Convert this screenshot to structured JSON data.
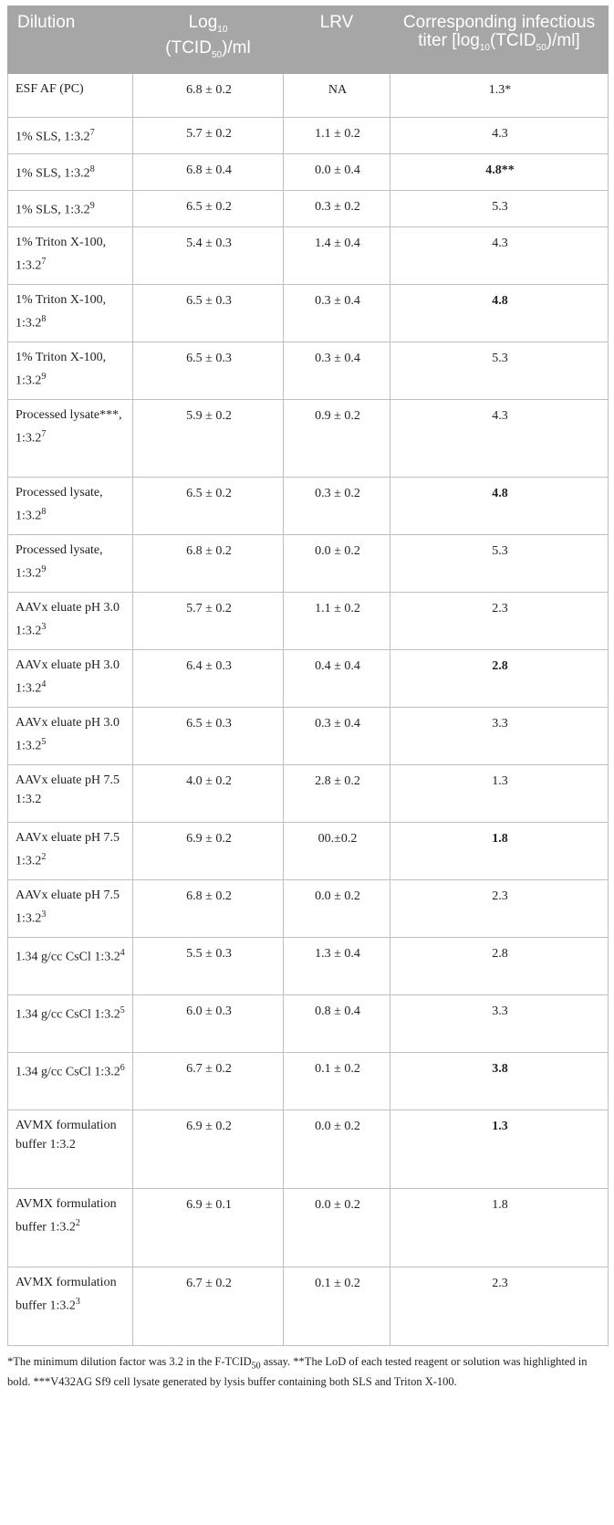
{
  "header": {
    "col1": "Dilution",
    "col2_a": "Log",
    "col2_sub": "10",
    "col2_b": "(TCID",
    "col2_sub2": "50",
    "col2_c": ")/ml",
    "col3": "LRV",
    "col4_a": "Corresponding infectious titer [log",
    "col4_sub": "10",
    "col4_b": "(TCID",
    "col4_sub2": "50",
    "col4_c": ")/ml]"
  },
  "rows": [
    {
      "name": "ESF AF (PC)",
      "sup": "",
      "log": "6.8 ± 0.2",
      "lrv": "NA",
      "titer": "1.3*",
      "bold": false,
      "h": 48
    },
    {
      "name": "1% SLS, 1:3.2",
      "sup": "7",
      "log": "5.7 ± 0.2",
      "lrv": "1.1 ± 0.2",
      "titer": "4.3",
      "bold": false,
      "h": 40
    },
    {
      "name": "1% SLS, 1:3.2",
      "sup": "8",
      "log": "6.8 ± 0.4",
      "lrv": "0.0 ± 0.4",
      "titer": "4.8**",
      "bold": true,
      "h": 40
    },
    {
      "name": "1% SLS, 1:3.2",
      "sup": "9",
      "log": "6.5 ± 0.2",
      "lrv": "0.3 ± 0.2",
      "titer": "5.3",
      "bold": false,
      "h": 40
    },
    {
      "name": "1% Triton X-100, 1:3.2",
      "sup": "7",
      "log": "5.4 ± 0.3",
      "lrv": "1.4 ± 0.4",
      "titer": "4.3",
      "bold": false,
      "h": 63
    },
    {
      "name": "1% Triton X-100, 1:3.2",
      "sup": "8",
      "log": "6.5 ± 0.3",
      "lrv": "0.3 ± 0.4",
      "titer": "4.8",
      "bold": true,
      "h": 63
    },
    {
      "name": "1% Triton X-100, 1:3.2",
      "sup": "9",
      "log": "6.5 ± 0.3",
      "lrv": "0.3 ± 0.4",
      "titer": "5.3",
      "bold": false,
      "h": 63
    },
    {
      "name": "Processed lysate***, 1:3.2",
      "sup": "7",
      "log": "5.9 ± 0.2",
      "lrv": "0.9 ± 0.2",
      "titer": "4.3",
      "bold": false,
      "h": 85
    },
    {
      "name": "Processed lysate, 1:3.2",
      "sup": "8",
      "log": "6.5 ± 0.2",
      "lrv": "0.3 ± 0.2",
      "titer": "4.8",
      "bold": true,
      "h": 63
    },
    {
      "name": "Processed lysate, 1:3.2",
      "sup": "9",
      "log": "6.8 ± 0.2",
      "lrv": "0.0 ± 0.2",
      "titer": "5.3",
      "bold": false,
      "h": 63
    },
    {
      "name": "AAVx eluate pH 3.0 1:3.2",
      "sup": "3",
      "log": "5.7 ± 0.2",
      "lrv": "1.1 ± 0.2",
      "titer": "2.3",
      "bold": false,
      "h": 63
    },
    {
      "name": "AAVx eluate pH 3.0 1:3.2",
      "sup": "4",
      "log": "6.4 ± 0.3",
      "lrv": "0.4 ± 0.4",
      "titer": "2.8",
      "bold": true,
      "h": 63
    },
    {
      "name": "AAVx eluate pH 3.0 1:3.2",
      "sup": "5",
      "log": "6.5 ± 0.3",
      "lrv": "0.3 ± 0.4",
      "titer": "3.3",
      "bold": false,
      "h": 63
    },
    {
      "name": "AAVx eluate pH 7.5 1:3.2",
      "sup": "",
      "log": "4.0 ± 0.2",
      "lrv": "2.8 ± 0.2",
      "titer": "1.3",
      "bold": false,
      "h": 63
    },
    {
      "name": "AAVx eluate pH 7.5 1:3.2",
      "sup": "2",
      "log": "6.9 ± 0.2",
      "lrv": "00.±0.2",
      "titer": "1.8",
      "bold": true,
      "h": 63
    },
    {
      "name": "AAVx eluate pH 7.5 1:3.2",
      "sup": "3",
      "log": "6.8 ± 0.2",
      "lrv": "0.0 ± 0.2",
      "titer": "2.3",
      "bold": false,
      "h": 63
    },
    {
      "name": "1.34 g/cc CsCl 1:3.2",
      "sup": "4",
      "log": "5.5 ± 0.3",
      "lrv": "1.3 ± 0.4",
      "titer": "2.8",
      "bold": false,
      "h": 63
    },
    {
      "name": "1.34 g/cc CsCl 1:3.2",
      "sup": "5",
      "log": "6.0 ± 0.3",
      "lrv": "0.8 ± 0.4",
      "titer": "3.3",
      "bold": false,
      "h": 63
    },
    {
      "name": "1.34 g/cc CsCl 1:3.2",
      "sup": "6",
      "log": "6.7 ± 0.2",
      "lrv": "0.1 ± 0.2",
      "titer": "3.8",
      "bold": true,
      "h": 63
    },
    {
      "name": "AVMX formulation buffer 1:3.2",
      "sup": "",
      "log": "6.9 ± 0.2",
      "lrv": "0.0 ± 0.2",
      "titer": "1.3",
      "bold": true,
      "h": 86
    },
    {
      "name": "AVMX formulation buffer 1:3.2",
      "sup": "2",
      "log": "6.9 ± 0.1",
      "lrv": "0.0 ± 0.2",
      "titer": "1.8",
      "bold": false,
      "h": 86
    },
    {
      "name": "AVMX formulation buffer 1:3.2",
      "sup": "3",
      "log": "6.7 ± 0.2",
      "lrv": "0.1 ± 0.2",
      "titer": "2.3",
      "bold": false,
      "h": 86
    }
  ],
  "footnote": {
    "a": "*The minimum dilution factor was 3.2 in the F-TCID",
    "a_sub": "50",
    "b": " assay. **The LoD of each tested reagent or solution was highlighted in bold. ***V432AG Sf9 cell lysate generated by lysis buffer containing both SLS and Triton X-100."
  }
}
